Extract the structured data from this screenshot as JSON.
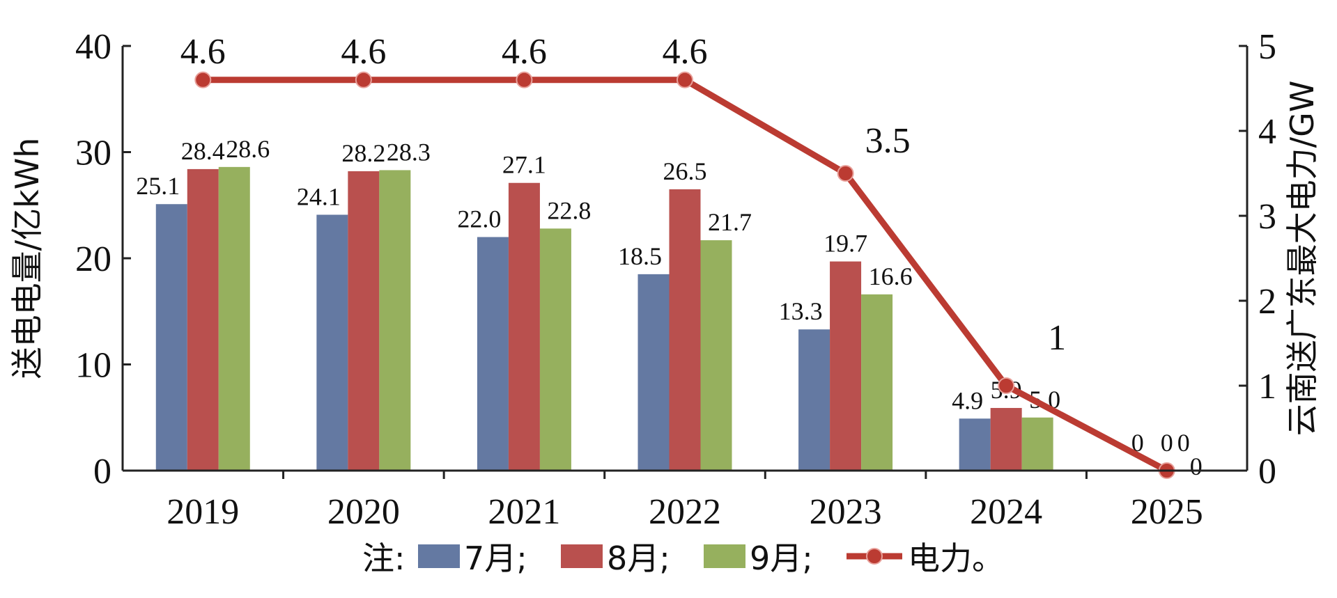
{
  "chart_data": {
    "type": "bar",
    "categories": [
      "2019",
      "2020",
      "2021",
      "2022",
      "2023",
      "2024",
      "2025"
    ],
    "series": [
      {
        "name": "7月",
        "color": "#6479A2",
        "values": [
          25.1,
          24.1,
          22.0,
          18.5,
          13.3,
          4.9,
          0
        ],
        "labels": [
          "25.1",
          "24.1",
          "22.0",
          "18.5",
          "13.3",
          "4.9",
          "0"
        ]
      },
      {
        "name": "8月",
        "color": "#B9504E",
        "values": [
          28.4,
          28.2,
          27.1,
          26.5,
          19.7,
          5.9,
          0
        ],
        "labels": [
          "28.4",
          "28.2",
          "27.1",
          "26.5",
          "19.7",
          "5.9",
          "0"
        ]
      },
      {
        "name": "9月",
        "color": "#96B05E",
        "values": [
          28.6,
          28.3,
          22.8,
          21.7,
          16.6,
          5.0,
          0
        ],
        "labels": [
          "28.6",
          "28.3",
          "22.8",
          "21.7",
          "16.6",
          "5.0",
          "0"
        ]
      }
    ],
    "line_series": {
      "name": "电力",
      "color": "#BB3B32",
      "values": [
        4.6,
        4.6,
        4.6,
        4.6,
        3.5,
        1,
        0
      ],
      "labels": [
        "4.6",
        "4.6",
        "4.6",
        "4.6",
        "3.5",
        "1",
        "0"
      ]
    },
    "ylabel": "送电电量/亿kWh",
    "y2label": "云南送广东最大电力/GW",
    "ylim": [
      0,
      40
    ],
    "yticks": [
      "0",
      "10",
      "20",
      "30",
      "40"
    ],
    "y2lim": [
      0,
      5
    ],
    "y2ticks": [
      "0",
      "1",
      "2",
      "3",
      "4",
      "5"
    ],
    "grid": false,
    "legend_position": "bottom",
    "legend": {
      "prefix": "注:",
      "separator": ";",
      "end": "。"
    }
  }
}
